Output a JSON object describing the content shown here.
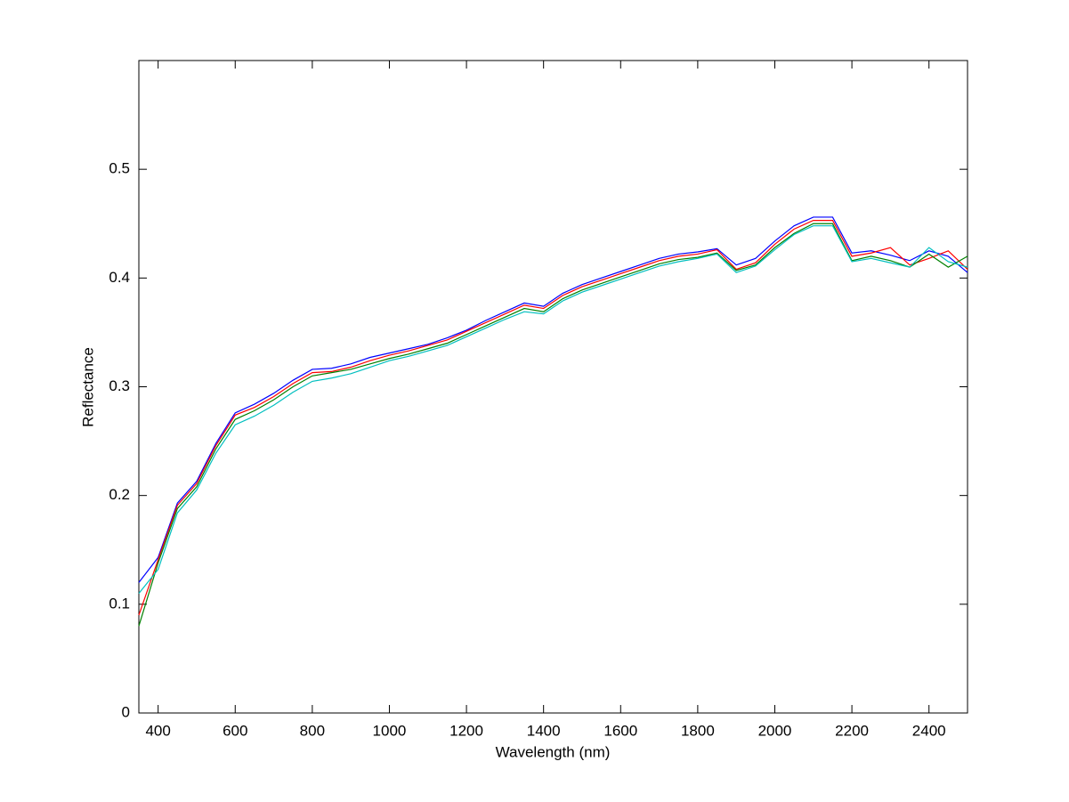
{
  "chart_data": {
    "type": "line",
    "xlabel": "Wavelength (nm)",
    "ylabel": "Reflectance",
    "x": [
      350,
      400,
      450,
      500,
      550,
      600,
      650,
      700,
      750,
      800,
      850,
      900,
      950,
      1000,
      1050,
      1100,
      1150,
      1200,
      1250,
      1300,
      1350,
      1400,
      1450,
      1500,
      1550,
      1600,
      1650,
      1700,
      1750,
      1800,
      1850,
      1900,
      1950,
      2000,
      2050,
      2100,
      2150,
      2200,
      2250,
      2300,
      2350,
      2400,
      2450,
      2500
    ],
    "series": [
      {
        "color": "#0000ff",
        "values": [
          0.12,
          0.143,
          0.193,
          0.213,
          0.248,
          0.276,
          0.284,
          0.294,
          0.306,
          0.316,
          0.317,
          0.321,
          0.327,
          0.331,
          0.335,
          0.339,
          0.345,
          0.352,
          0.361,
          0.369,
          0.377,
          0.374,
          0.386,
          0.394,
          0.4,
          0.406,
          0.412,
          0.418,
          0.422,
          0.424,
          0.427,
          0.412,
          0.418,
          0.434,
          0.448,
          0.456,
          0.456,
          0.423,
          0.425,
          0.421,
          0.416,
          0.425,
          0.42,
          0.405
        ]
      },
      {
        "color": "#ff0000",
        "values": [
          0.09,
          0.141,
          0.191,
          0.211,
          0.246,
          0.274,
          0.281,
          0.291,
          0.303,
          0.313,
          0.314,
          0.318,
          0.324,
          0.329,
          0.333,
          0.338,
          0.343,
          0.351,
          0.359,
          0.367,
          0.375,
          0.372,
          0.384,
          0.392,
          0.398,
          0.404,
          0.41,
          0.416,
          0.42,
          0.422,
          0.426,
          0.408,
          0.414,
          0.431,
          0.445,
          0.453,
          0.453,
          0.42,
          0.423,
          0.428,
          0.412,
          0.418,
          0.425,
          0.408
        ]
      },
      {
        "color": "#008000",
        "values": [
          0.08,
          0.138,
          0.188,
          0.208,
          0.243,
          0.27,
          0.278,
          0.288,
          0.3,
          0.31,
          0.313,
          0.316,
          0.321,
          0.326,
          0.33,
          0.335,
          0.34,
          0.348,
          0.356,
          0.364,
          0.372,
          0.369,
          0.381,
          0.389,
          0.395,
          0.401,
          0.407,
          0.413,
          0.417,
          0.419,
          0.423,
          0.407,
          0.412,
          0.428,
          0.441,
          0.45,
          0.45,
          0.416,
          0.42,
          0.416,
          0.41,
          0.422,
          0.41,
          0.42
        ]
      },
      {
        "color": "#00bfbf",
        "values": [
          0.11,
          0.132,
          0.184,
          0.205,
          0.239,
          0.265,
          0.273,
          0.283,
          0.295,
          0.305,
          0.308,
          0.312,
          0.318,
          0.324,
          0.328,
          0.333,
          0.338,
          0.346,
          0.354,
          0.362,
          0.369,
          0.367,
          0.379,
          0.387,
          0.393,
          0.399,
          0.405,
          0.411,
          0.415,
          0.418,
          0.422,
          0.405,
          0.411,
          0.426,
          0.44,
          0.448,
          0.448,
          0.415,
          0.418,
          0.414,
          0.41,
          0.428,
          0.415,
          0.41
        ]
      }
    ],
    "xlim": [
      350,
      2500
    ],
    "xticks": [
      400,
      600,
      800,
      1000,
      1200,
      1400,
      1600,
      1800,
      2000,
      2200,
      2400
    ],
    "ylim": [
      0,
      0.6
    ],
    "yticks": [
      0,
      0.1,
      0.2,
      0.3,
      0.4,
      0.5
    ],
    "grid": false
  }
}
